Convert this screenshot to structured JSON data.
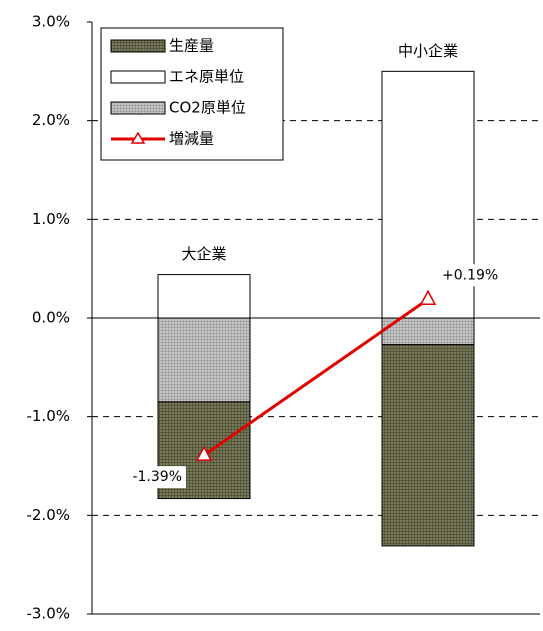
{
  "chart_data": {
    "type": "stacked-bar-line",
    "categories": [
      "大企業",
      "中小企業"
    ],
    "series": [
      {
        "name": "生産量",
        "type": "bar",
        "color": "#7a7a5c",
        "values": [
          -0.98,
          -2.04
        ]
      },
      {
        "name": "エネ原単位",
        "type": "bar",
        "color": "#ffffff",
        "values": [
          0.44,
          2.5
        ]
      },
      {
        "name": "CO2原単位",
        "type": "bar",
        "color": "#c8c8c8",
        "values": [
          -0.85,
          -0.27
        ]
      },
      {
        "name": "増減量",
        "type": "line",
        "color": "#e00000",
        "values": [
          -1.39,
          0.19
        ],
        "value_labels": [
          "-1.39%",
          "+0.19%"
        ]
      }
    ],
    "ylim": [
      -3,
      3
    ],
    "yticks": [
      {
        "value": -3,
        "label": "-3.0%"
      },
      {
        "value": -2,
        "label": "-2.0%"
      },
      {
        "value": -1,
        "label": "-1.0%"
      },
      {
        "value": 0,
        "label": "0.0%"
      },
      {
        "value": 1,
        "label": "1.0%"
      },
      {
        "value": 2,
        "label": "2.0%"
      },
      {
        "value": 3,
        "label": "3.0%"
      }
    ],
    "grid": true,
    "legend": "upper left"
  }
}
